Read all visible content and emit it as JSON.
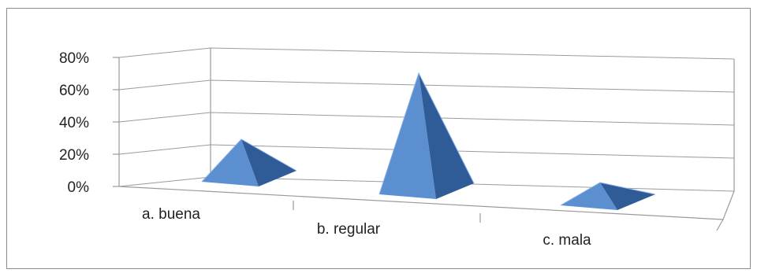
{
  "chart_data": {
    "type": "bar",
    "style": "3d-pyramid",
    "categories": [
      "a. buena",
      "b. regular",
      "c. mala"
    ],
    "values": [
      20,
      60,
      10
    ],
    "ylim": [
      0,
      80
    ],
    "yticks": [
      "0%",
      "20%",
      "40%",
      "60%",
      "80%"
    ],
    "grid": true,
    "legend": "none",
    "colors": {
      "front": "#5b8fd0",
      "side": "#2f5c97",
      "edge": "#86b0e6"
    }
  }
}
